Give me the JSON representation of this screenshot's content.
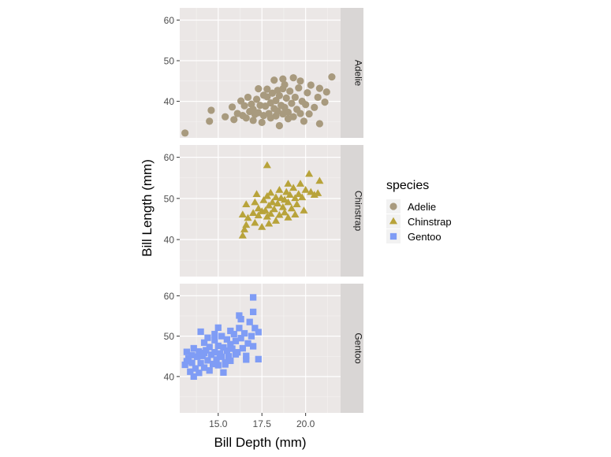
{
  "chart_data": {
    "type": "scatter",
    "facet_direction": "rows",
    "xlabel": "Bill Depth (mm)",
    "ylabel": "Bill Length (mm)",
    "xlim": [
      12.8,
      22.0
    ],
    "ylim": [
      31,
      63
    ],
    "x_ticks": [
      15.0,
      17.5,
      20.0
    ],
    "x_tick_labels": [
      "15.0",
      "17.5",
      "20.0"
    ],
    "y_ticks": [
      40,
      50,
      60
    ],
    "y_tick_labels": [
      "40",
      "50",
      "60"
    ],
    "grid": true,
    "legend": {
      "title": "species",
      "position": "right"
    },
    "series": [
      {
        "name": "Adelie",
        "facet": "Adelie",
        "shape": "circle",
        "color": "#a89a7e",
        "points": [
          [
            13.1,
            32.2
          ],
          [
            14.5,
            35.1
          ],
          [
            14.6,
            37.8
          ],
          [
            15.4,
            36.2
          ],
          [
            15.8,
            38.6
          ],
          [
            15.9,
            35.5
          ],
          [
            16.1,
            37.0
          ],
          [
            16.3,
            40.1
          ],
          [
            16.4,
            36.5
          ],
          [
            16.5,
            38.9
          ],
          [
            16.6,
            35.9
          ],
          [
            16.7,
            41.0
          ],
          [
            16.8,
            37.5
          ],
          [
            16.9,
            39.3
          ],
          [
            17.0,
            35.3
          ],
          [
            17.0,
            38.0
          ],
          [
            17.1,
            36.8
          ],
          [
            17.2,
            40.5
          ],
          [
            17.3,
            37.2
          ],
          [
            17.4,
            39.0
          ],
          [
            17.5,
            34.8
          ],
          [
            17.6,
            36.5
          ],
          [
            17.7,
            38.8
          ],
          [
            17.8,
            41.1
          ],
          [
            17.9,
            37.0
          ],
          [
            18.0,
            39.6
          ],
          [
            18.0,
            35.9
          ],
          [
            18.1,
            42.0
          ],
          [
            18.2,
            38.2
          ],
          [
            18.3,
            36.4
          ],
          [
            18.3,
            40.2
          ],
          [
            18.4,
            37.6
          ],
          [
            18.5,
            41.4
          ],
          [
            18.5,
            34.0
          ],
          [
            18.6,
            39.0
          ],
          [
            18.7,
            36.9
          ],
          [
            18.7,
            43.1
          ],
          [
            18.8,
            38.5
          ],
          [
            18.9,
            40.8
          ],
          [
            19.0,
            37.3
          ],
          [
            19.0,
            35.7
          ],
          [
            19.1,
            42.5
          ],
          [
            19.2,
            39.5
          ],
          [
            19.3,
            36.2
          ],
          [
            19.4,
            41.0
          ],
          [
            19.5,
            38.0
          ],
          [
            19.6,
            43.3
          ],
          [
            19.7,
            37.0
          ],
          [
            19.8,
            40.0
          ],
          [
            19.9,
            35.1
          ],
          [
            20.0,
            39.2
          ],
          [
            20.1,
            42.1
          ],
          [
            20.2,
            36.9
          ],
          [
            20.3,
            44.0
          ],
          [
            20.5,
            38.5
          ],
          [
            20.7,
            41.0
          ],
          [
            20.8,
            34.5
          ],
          [
            21.1,
            39.8
          ],
          [
            21.2,
            42.3
          ],
          [
            21.5,
            46.0
          ],
          [
            19.3,
            45.8
          ],
          [
            18.8,
            44.1
          ],
          [
            17.8,
            43.0
          ],
          [
            18.2,
            45.2
          ],
          [
            18.7,
            45.5
          ],
          [
            19.7,
            45.0
          ],
          [
            17.3,
            43.1
          ],
          [
            20.8,
            43.2
          ],
          [
            18.4,
            42.7
          ],
          [
            17.6,
            41.5
          ]
        ]
      },
      {
        "name": "Chinstrap",
        "facet": "Chinstrap",
        "shape": "triangle",
        "color": "#b8a33a",
        "points": [
          [
            16.4,
            40.9
          ],
          [
            16.5,
            42.4
          ],
          [
            16.6,
            43.5
          ],
          [
            16.4,
            46.0
          ],
          [
            16.6,
            48.5
          ],
          [
            16.7,
            45.2
          ],
          [
            17.0,
            46.4
          ],
          [
            17.1,
            49.0
          ],
          [
            17.1,
            44.0
          ],
          [
            17.3,
            45.8
          ],
          [
            17.3,
            47.5
          ],
          [
            17.5,
            43.0
          ],
          [
            17.5,
            46.8
          ],
          [
            17.6,
            49.5
          ],
          [
            17.7,
            47.0
          ],
          [
            17.8,
            45.5
          ],
          [
            17.8,
            50.5
          ],
          [
            17.9,
            48.2
          ],
          [
            17.9,
            43.8
          ],
          [
            18.0,
            46.2
          ],
          [
            18.0,
            51.3
          ],
          [
            18.1,
            49.0
          ],
          [
            18.2,
            47.3
          ],
          [
            18.3,
            50.2
          ],
          [
            18.3,
            44.5
          ],
          [
            18.4,
            48.7
          ],
          [
            18.5,
            52.0
          ],
          [
            18.5,
            45.9
          ],
          [
            18.6,
            50.0
          ],
          [
            18.7,
            47.8
          ],
          [
            18.8,
            49.6
          ],
          [
            18.8,
            46.5
          ],
          [
            18.9,
            51.5
          ],
          [
            19.0,
            49.0
          ],
          [
            19.0,
            45.3
          ],
          [
            19.1,
            50.8
          ],
          [
            19.2,
            47.5
          ],
          [
            19.3,
            52.5
          ],
          [
            19.4,
            50.0
          ],
          [
            19.4,
            46.0
          ],
          [
            19.5,
            48.5
          ],
          [
            19.6,
            51.0
          ],
          [
            19.7,
            53.5
          ],
          [
            19.8,
            50.2
          ],
          [
            19.9,
            47.0
          ],
          [
            20.0,
            52.0
          ],
          [
            20.2,
            55.9
          ],
          [
            20.3,
            51.5
          ],
          [
            20.5,
            50.8
          ],
          [
            20.7,
            51.2
          ],
          [
            20.8,
            54.2
          ],
          [
            17.8,
            58.0
          ],
          [
            19.0,
            53.5
          ],
          [
            17.2,
            51.0
          ]
        ]
      },
      {
        "name": "Gentoo",
        "facet": "Gentoo",
        "shape": "square",
        "color": "#7f9cf5",
        "points": [
          [
            13.1,
            42.9
          ],
          [
            13.2,
            46.1
          ],
          [
            13.3,
            44.5
          ],
          [
            13.4,
            41.2
          ],
          [
            13.5,
            45.3
          ],
          [
            13.5,
            43.4
          ],
          [
            13.6,
            47.0
          ],
          [
            13.7,
            42.0
          ],
          [
            13.8,
            44.9
          ],
          [
            13.9,
            46.2
          ],
          [
            13.9,
            40.9
          ],
          [
            14.0,
            43.3
          ],
          [
            14.1,
            45.1
          ],
          [
            14.2,
            48.4
          ],
          [
            14.2,
            42.2
          ],
          [
            14.3,
            46.5
          ],
          [
            14.4,
            44.0
          ],
          [
            14.5,
            47.3
          ],
          [
            14.5,
            41.5
          ],
          [
            14.6,
            45.4
          ],
          [
            14.7,
            43.1
          ],
          [
            14.8,
            49.0
          ],
          [
            14.8,
            46.0
          ],
          [
            14.9,
            44.2
          ],
          [
            15.0,
            47.6
          ],
          [
            15.0,
            42.8
          ],
          [
            15.1,
            45.7
          ],
          [
            15.2,
            50.0
          ],
          [
            15.2,
            44.9
          ],
          [
            15.3,
            47.2
          ],
          [
            15.4,
            43.5
          ],
          [
            15.5,
            46.4
          ],
          [
            15.5,
            49.2
          ],
          [
            15.6,
            45.0
          ],
          [
            15.7,
            48.0
          ],
          [
            15.7,
            43.9
          ],
          [
            15.8,
            46.9
          ],
          [
            15.9,
            50.5
          ],
          [
            16.0,
            45.5
          ],
          [
            16.0,
            48.8
          ],
          [
            16.1,
            46.0
          ],
          [
            16.2,
            52.0
          ],
          [
            16.3,
            49.5
          ],
          [
            16.4,
            47.0
          ],
          [
            16.5,
            50.7
          ],
          [
            16.6,
            45.1
          ],
          [
            16.7,
            48.2
          ],
          [
            16.8,
            53.5
          ],
          [
            16.9,
            50.0
          ],
          [
            17.0,
            47.5
          ],
          [
            17.0,
            56.0
          ],
          [
            17.1,
            52.0
          ],
          [
            17.3,
            51.0
          ],
          [
            17.3,
            44.3
          ],
          [
            17.0,
            59.6
          ],
          [
            16.3,
            54.2
          ],
          [
            15.7,
            51.3
          ],
          [
            14.0,
            51.1
          ],
          [
            16.6,
            44.2
          ],
          [
            15.3,
            41.0
          ],
          [
            14.2,
            45.8
          ],
          [
            14.4,
            49.6
          ],
          [
            13.6,
            40.0
          ],
          [
            15.0,
            52.1
          ],
          [
            16.2,
            55.1
          ],
          [
            14.8,
            50.5
          ],
          [
            15.4,
            43.0
          ],
          [
            13.2,
            43.8
          ]
        ]
      }
    ]
  }
}
